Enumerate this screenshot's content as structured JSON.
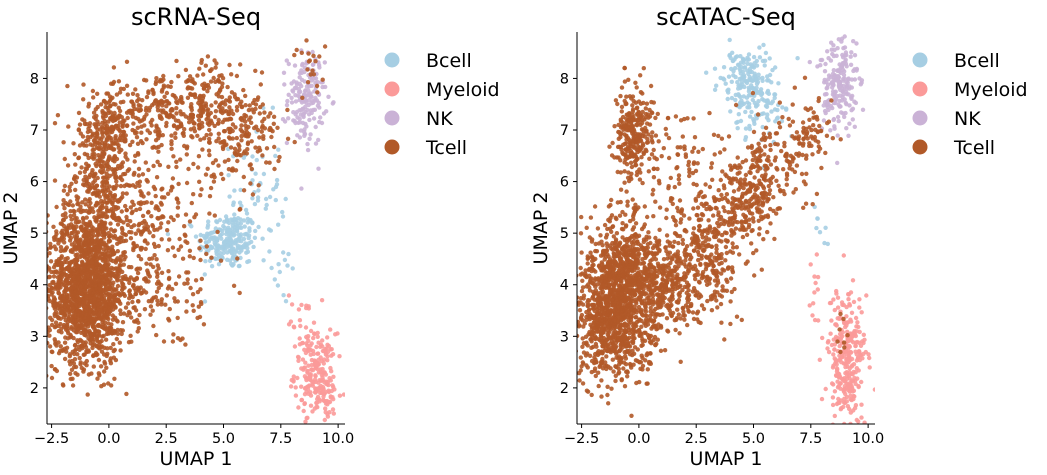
{
  "chart_data": [
    {
      "type": "scatter",
      "title": "scRNA-Seq",
      "xlabel": "UMAP 1",
      "ylabel": "UMAP 2",
      "xlim": [
        -2.7,
        10.3
      ],
      "ylim": [
        1.3,
        8.9
      ],
      "xticks": [
        -2.5,
        0.0,
        2.5,
        5.0,
        7.5,
        10.0
      ],
      "xtick_labels": [
        "−2.5",
        "0.0",
        "2.5",
        "5.0",
        "7.5",
        "10.0"
      ],
      "yticks": [
        2,
        3,
        4,
        5,
        6,
        7,
        8
      ],
      "ytick_labels": [
        "2",
        "3",
        "4",
        "5",
        "6",
        "7",
        "8"
      ],
      "grid": false,
      "legend": "outside-right",
      "series": [
        {
          "name": "Bcell",
          "color": "#a6cee3",
          "clusters": [
            {
              "cx": 5.2,
              "cy": 4.85,
              "sx": 0.65,
              "sy": 0.28,
              "n": 230
            },
            {
              "cx": 6.4,
              "cy": 5.8,
              "sx": 0.55,
              "sy": 0.7,
              "n": 55
            },
            {
              "cx": 7.6,
              "cy": 4.3,
              "sx": 0.2,
              "sy": 0.6,
              "n": 14
            }
          ]
        },
        {
          "name": "Myeloid",
          "color": "#fb9a99",
          "clusters": [
            {
              "cx": 9.0,
              "cy": 2.3,
              "sx": 0.45,
              "sy": 0.38,
              "n": 190
            },
            {
              "cx": 9.5,
              "cy": 1.8,
              "sx": 0.3,
              "sy": 0.25,
              "n": 40
            },
            {
              "cx": 8.4,
              "cy": 3.3,
              "sx": 0.3,
              "sy": 0.3,
              "n": 22
            }
          ]
        },
        {
          "name": "NK",
          "color": "#cab2d6",
          "clusters": [
            {
              "cx": 8.6,
              "cy": 7.6,
              "sx": 0.4,
              "sy": 0.45,
              "n": 170
            }
          ]
        },
        {
          "name": "Tcell",
          "color": "#b15928",
          "clusters": [
            {
              "cx": -1.0,
              "cy": 3.9,
              "sx": 0.85,
              "sy": 0.7,
              "n": 1500
            },
            {
              "cx": -0.4,
              "cy": 5.7,
              "sx": 0.9,
              "sy": 0.9,
              "n": 450
            },
            {
              "cx": 0.0,
              "cy": 7.0,
              "sx": 0.6,
              "sy": 0.35,
              "n": 160
            },
            {
              "cx": 2.5,
              "cy": 7.3,
              "sx": 1.2,
              "sy": 0.35,
              "n": 250
            },
            {
              "cx": 5.5,
              "cy": 7.0,
              "sx": 1.0,
              "sy": 0.45,
              "n": 230
            },
            {
              "cx": 1.8,
              "cy": 5.3,
              "sx": 1.5,
              "sy": 0.7,
              "n": 220
            },
            {
              "cx": 1.5,
              "cy": 3.8,
              "sx": 1.3,
              "sy": 0.5,
              "n": 160
            },
            {
              "cx": 4.5,
              "cy": 7.7,
              "sx": 0.6,
              "sy": 0.35,
              "n": 60
            },
            {
              "cx": 8.8,
              "cy": 8.2,
              "sx": 0.35,
              "sy": 0.3,
              "n": 20
            }
          ]
        }
      ]
    },
    {
      "type": "scatter",
      "title": "scATAC-Seq",
      "xlabel": "UMAP 1",
      "ylabel": "UMAP 2",
      "xlim": [
        -2.7,
        10.3
      ],
      "ylim": [
        1.3,
        8.9
      ],
      "xticks": [
        -2.5,
        0.0,
        2.5,
        5.0,
        7.5,
        10.0
      ],
      "xtick_labels": [
        "−2.5",
        "0.0",
        "2.5",
        "5.0",
        "7.5",
        "10.0"
      ],
      "yticks": [
        2,
        3,
        4,
        5,
        6,
        7,
        8
      ],
      "ytick_labels": [
        "2",
        "3",
        "4",
        "5",
        "6",
        "7",
        "8"
      ],
      "grid": false,
      "legend": "outside-right",
      "series": [
        {
          "name": "Bcell",
          "color": "#a6cee3",
          "clusters": [
            {
              "cx": 4.7,
              "cy": 7.9,
              "sx": 0.55,
              "sy": 0.35,
              "n": 190
            },
            {
              "cx": 5.5,
              "cy": 7.2,
              "sx": 0.6,
              "sy": 0.35,
              "n": 40
            },
            {
              "cx": 7.9,
              "cy": 5.2,
              "sx": 0.15,
              "sy": 0.3,
              "n": 8
            }
          ]
        },
        {
          "name": "Myeloid",
          "color": "#fb9a99",
          "clusters": [
            {
              "cx": 9.0,
              "cy": 2.7,
              "sx": 0.45,
              "sy": 0.6,
              "n": 260
            },
            {
              "cx": 9.2,
              "cy": 1.8,
              "sx": 0.3,
              "sy": 0.25,
              "n": 40
            },
            {
              "cx": 7.7,
              "cy": 3.8,
              "sx": 0.15,
              "sy": 0.4,
              "n": 12
            }
          ]
        },
        {
          "name": "NK",
          "color": "#cab2d6",
          "clusters": [
            {
              "cx": 8.7,
              "cy": 7.9,
              "sx": 0.45,
              "sy": 0.5,
              "n": 200
            }
          ]
        },
        {
          "name": "Tcell",
          "color": "#b15928",
          "clusters": [
            {
              "cx": -1.0,
              "cy": 3.5,
              "sx": 0.9,
              "sy": 0.65,
              "n": 1200
            },
            {
              "cx": -0.5,
              "cy": 4.5,
              "sx": 0.7,
              "sy": 0.5,
              "n": 300
            },
            {
              "cx": -0.2,
              "cy": 6.9,
              "sx": 0.4,
              "sy": 0.45,
              "n": 280
            },
            {
              "cx": 1.2,
              "cy": 4.0,
              "sx": 0.9,
              "sy": 0.45,
              "n": 300
            },
            {
              "cx": 2.8,
              "cy": 4.5,
              "sx": 0.8,
              "sy": 0.6,
              "n": 280
            },
            {
              "cx": 4.5,
              "cy": 5.6,
              "sx": 0.6,
              "sy": 0.5,
              "n": 170
            },
            {
              "cx": 5.4,
              "cy": 6.0,
              "sx": 0.35,
              "sy": 0.6,
              "n": 120
            },
            {
              "cx": 6.8,
              "cy": 6.5,
              "sx": 0.5,
              "sy": 0.5,
              "n": 80
            },
            {
              "cx": 2.2,
              "cy": 5.9,
              "sx": 1.2,
              "sy": 0.8,
              "n": 120
            },
            {
              "cx": 7.6,
              "cy": 7.1,
              "sx": 0.4,
              "sy": 0.3,
              "n": 40
            },
            {
              "cx": 9.0,
              "cy": 3.0,
              "sx": 0.2,
              "sy": 0.3,
              "n": 8
            }
          ]
        }
      ]
    }
  ]
}
